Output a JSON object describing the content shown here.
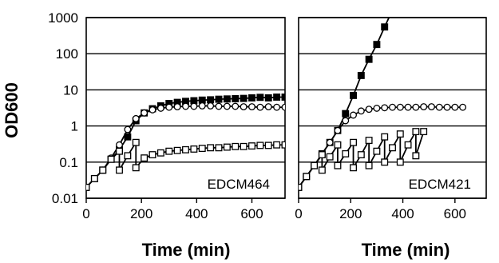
{
  "chart_data": [
    {
      "type": "line",
      "panel_label": "EDCM464",
      "xlabel": "Time (min)",
      "ylabel": "OD600",
      "xlim": [
        0,
        720
      ],
      "ylim": [
        0.01,
        1000
      ],
      "yscale": "log",
      "x_ticks": [
        0,
        200,
        400,
        600
      ],
      "y_ticks": [
        0.01,
        0.1,
        1,
        10,
        100,
        1000
      ],
      "grid": "horizontal",
      "series": [
        {
          "marker": "filled-square",
          "points": [
            [
              0,
              0.02
            ],
            [
              30,
              0.035
            ],
            [
              60,
              0.06
            ],
            [
              90,
              0.12
            ],
            [
              120,
              0.22
            ],
            [
              150,
              0.5
            ],
            [
              180,
              1.4
            ],
            [
              210,
              2.3
            ],
            [
              240,
              3.0
            ],
            [
              270,
              3.6
            ],
            [
              300,
              4.2
            ],
            [
              330,
              4.5
            ],
            [
              360,
              4.8
            ],
            [
              390,
              5.0
            ],
            [
              420,
              5.2
            ],
            [
              450,
              5.3
            ],
            [
              480,
              5.5
            ],
            [
              510,
              5.6
            ],
            [
              540,
              5.7
            ],
            [
              570,
              5.8
            ],
            [
              600,
              6.0
            ],
            [
              630,
              6.2
            ],
            [
              660,
              6.0
            ],
            [
              690,
              6.3
            ],
            [
              720,
              6.3
            ]
          ]
        },
        {
          "marker": "open-circle",
          "points": [
            [
              0,
              0.02
            ],
            [
              30,
              0.035
            ],
            [
              60,
              0.06
            ],
            [
              90,
              0.13
            ],
            [
              120,
              0.3
            ],
            [
              150,
              0.8
            ],
            [
              180,
              1.6
            ],
            [
              210,
              2.3
            ],
            [
              240,
              2.8
            ],
            [
              270,
              3.1
            ],
            [
              300,
              3.3
            ],
            [
              330,
              3.4
            ],
            [
              360,
              3.5
            ],
            [
              390,
              3.5
            ],
            [
              420,
              3.6
            ],
            [
              450,
              3.6
            ],
            [
              480,
              3.5
            ],
            [
              510,
              3.5
            ],
            [
              540,
              3.5
            ],
            [
              570,
              3.4
            ],
            [
              600,
              3.4
            ],
            [
              630,
              3.3
            ],
            [
              660,
              3.4
            ],
            [
              690,
              3.3
            ],
            [
              720,
              3.3
            ]
          ]
        },
        {
          "marker": "open-square",
          "points": [
            [
              0,
              0.02
            ],
            [
              30,
              0.035
            ],
            [
              60,
              0.06
            ],
            [
              90,
              0.12
            ],
            [
              120,
              0.2
            ],
            [
              120,
              0.06
            ],
            [
              150,
              0.15
            ],
            [
              180,
              0.35
            ],
            [
              180,
              0.07
            ],
            [
              210,
              0.13
            ],
            [
              240,
              0.16
            ],
            [
              270,
              0.18
            ],
            [
              300,
              0.2
            ],
            [
              330,
              0.21
            ],
            [
              360,
              0.22
            ],
            [
              390,
              0.23
            ],
            [
              420,
              0.24
            ],
            [
              450,
              0.25
            ],
            [
              480,
              0.25
            ],
            [
              510,
              0.26
            ],
            [
              540,
              0.27
            ],
            [
              570,
              0.27
            ],
            [
              600,
              0.28
            ],
            [
              630,
              0.29
            ],
            [
              660,
              0.29
            ],
            [
              690,
              0.3
            ],
            [
              720,
              0.3
            ]
          ]
        }
      ]
    },
    {
      "type": "line",
      "panel_label": "EDCM421",
      "xlabel": "Time (min)",
      "ylabel": "",
      "xlim": [
        0,
        720
      ],
      "ylim": [
        0.01,
        1000
      ],
      "yscale": "log",
      "x_ticks": [
        0,
        200,
        400,
        600
      ],
      "y_ticks": [
        0.01,
        0.1,
        1,
        10,
        100,
        1000
      ],
      "grid": "horizontal",
      "series": [
        {
          "marker": "filled-square",
          "points": [
            [
              0,
              0.02
            ],
            [
              30,
              0.04
            ],
            [
              60,
              0.08
            ],
            [
              90,
              0.17
            ],
            [
              120,
              0.35
            ],
            [
              150,
              0.75
            ],
            [
              180,
              2.2
            ],
            [
              210,
              7
            ],
            [
              240,
              25
            ],
            [
              270,
              70
            ],
            [
              300,
              180
            ],
            [
              330,
              550
            ]
          ],
          "trend_to": [
            [
              360,
              1600
            ]
          ]
        },
        {
          "marker": "open-circle",
          "points": [
            [
              0,
              0.02
            ],
            [
              30,
              0.04
            ],
            [
              60,
              0.08
            ],
            [
              90,
              0.17
            ],
            [
              120,
              0.35
            ],
            [
              150,
              0.75
            ],
            [
              180,
              1.4
            ],
            [
              210,
              2.0
            ],
            [
              240,
              2.6
            ],
            [
              270,
              2.9
            ],
            [
              300,
              3.1
            ],
            [
              330,
              3.2
            ],
            [
              360,
              3.3
            ],
            [
              390,
              3.3
            ],
            [
              420,
              3.3
            ],
            [
              450,
              3.3
            ],
            [
              480,
              3.4
            ],
            [
              510,
              3.4
            ],
            [
              540,
              3.3
            ],
            [
              570,
              3.3
            ],
            [
              600,
              3.3
            ],
            [
              630,
              3.3
            ]
          ]
        },
        {
          "marker": "open-square",
          "points": [
            [
              0,
              0.02
            ],
            [
              30,
              0.04
            ],
            [
              60,
              0.08
            ],
            [
              90,
              0.16
            ],
            [
              90,
              0.06
            ],
            [
              120,
              0.14
            ],
            [
              150,
              0.3
            ],
            [
              150,
              0.08
            ],
            [
              180,
              0.17
            ],
            [
              210,
              0.35
            ],
            [
              210,
              0.07
            ],
            [
              240,
              0.16
            ],
            [
              270,
              0.4
            ],
            [
              270,
              0.08
            ],
            [
              300,
              0.2
            ],
            [
              330,
              0.5
            ],
            [
              330,
              0.1
            ],
            [
              360,
              0.25
            ],
            [
              390,
              0.6
            ],
            [
              390,
              0.1
            ],
            [
              420,
              0.3
            ],
            [
              450,
              0.7
            ],
            [
              450,
              0.15
            ],
            [
              480,
              0.7
            ]
          ]
        }
      ]
    }
  ]
}
